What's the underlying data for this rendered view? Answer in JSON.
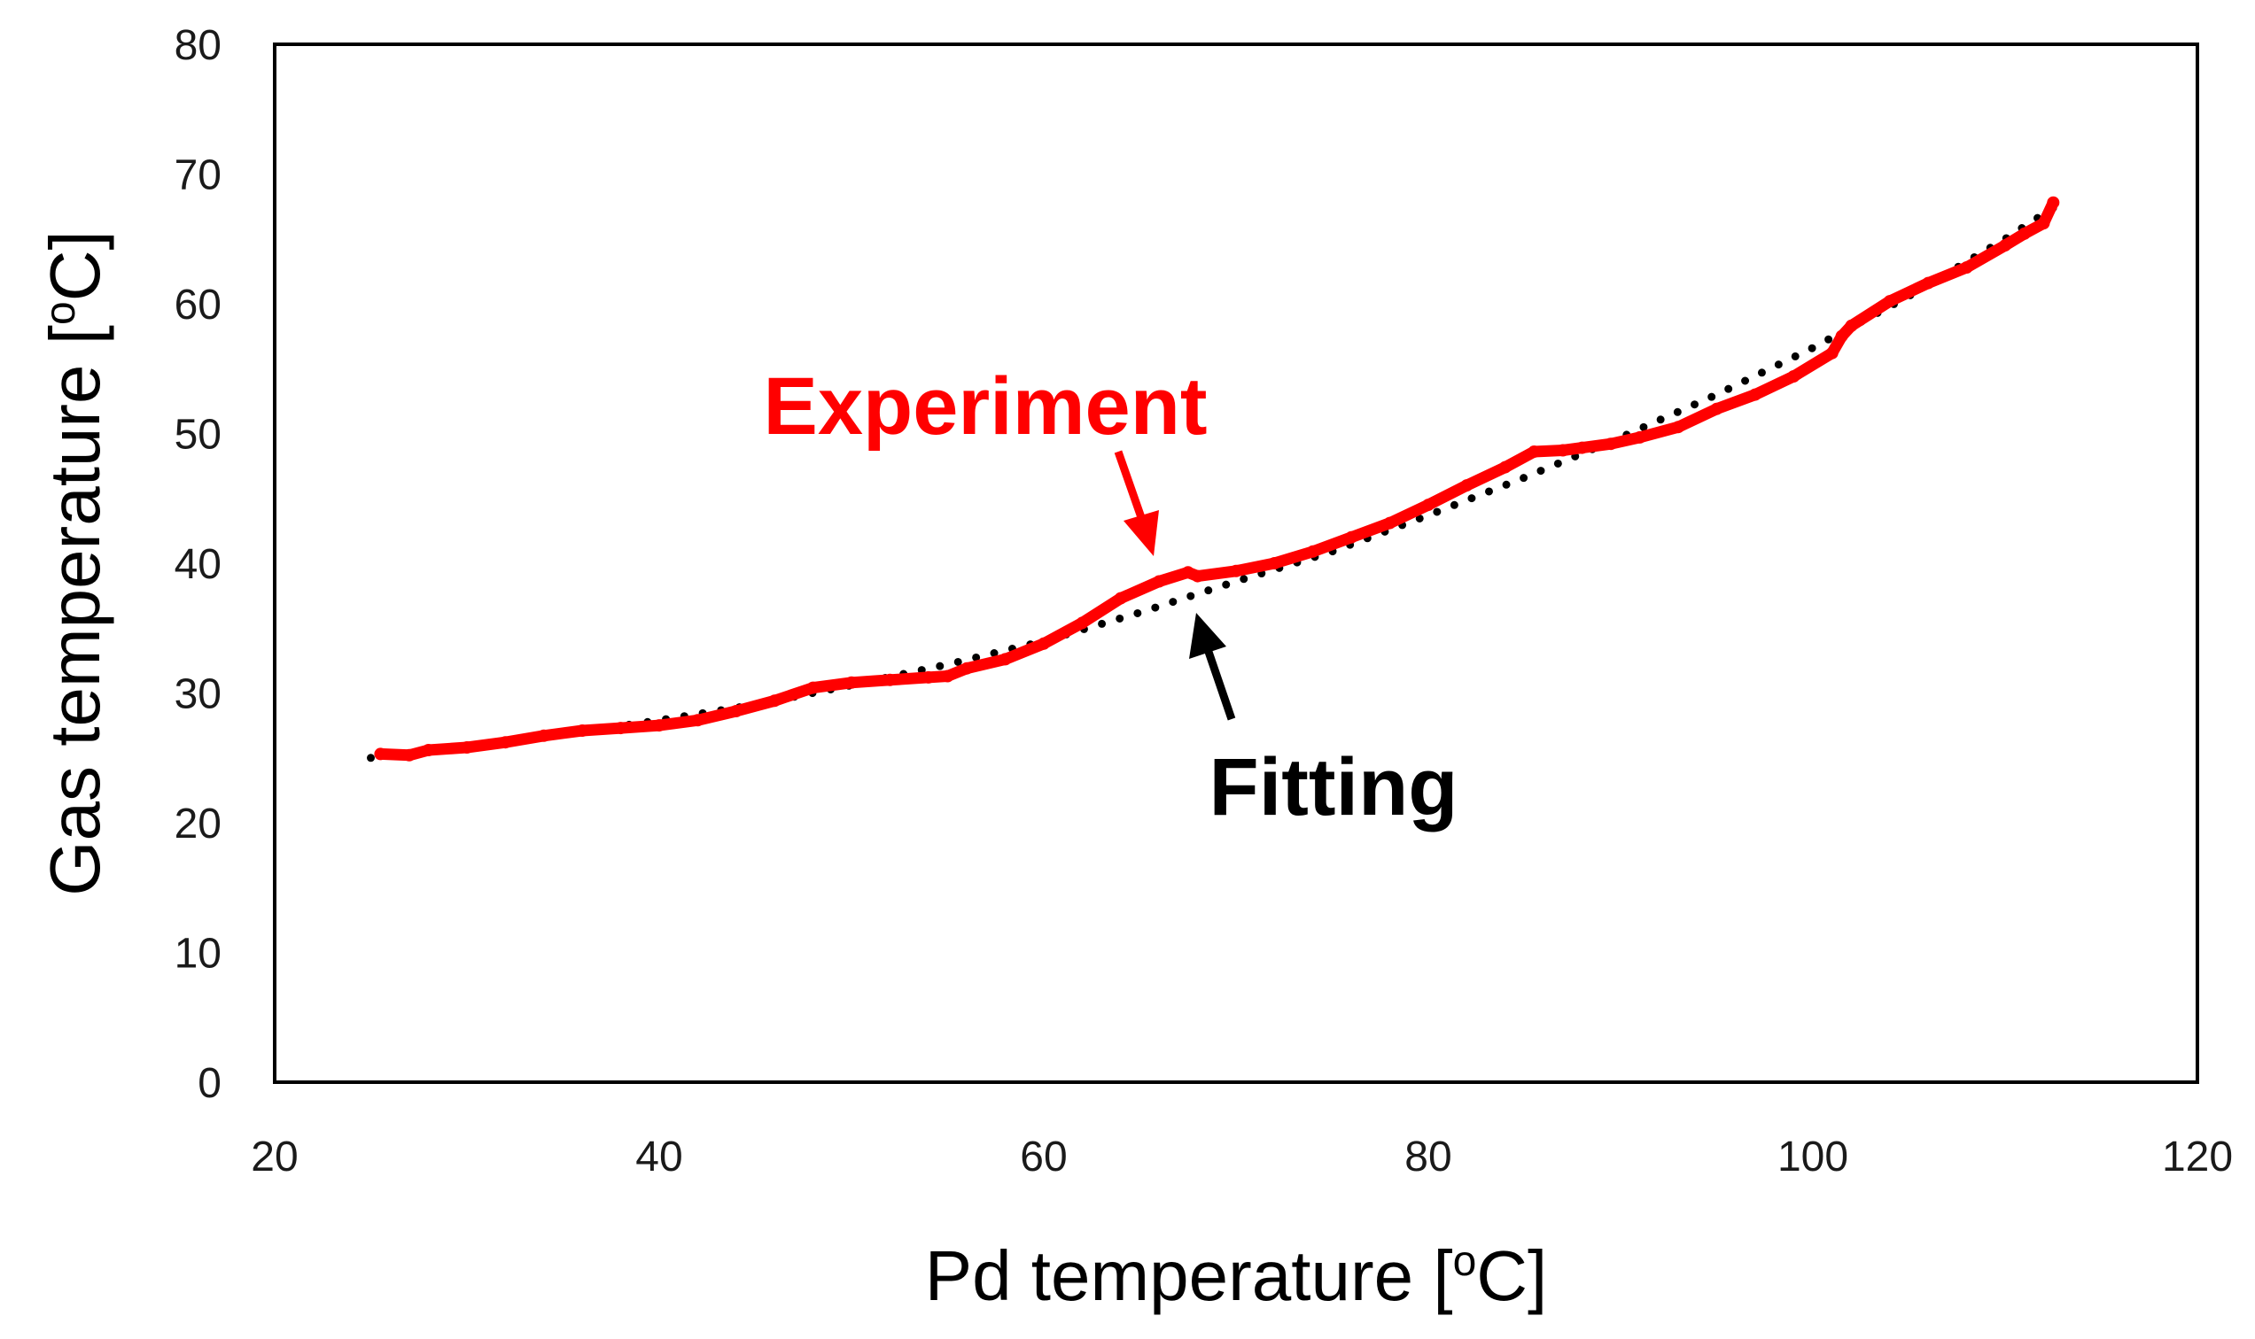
{
  "chart_data": {
    "type": "line",
    "title": "",
    "xlabel": {
      "main": "Pd temperature [",
      "sup": "o",
      "unit": "C]"
    },
    "ylabel": {
      "main": "Gas temperature [",
      "sup": "o",
      "unit": "C]"
    },
    "xlim": [
      20,
      120
    ],
    "ylim": [
      0,
      80
    ],
    "xticks": [
      20,
      40,
      60,
      80,
      100,
      120
    ],
    "yticks": [
      0,
      10,
      20,
      30,
      40,
      50,
      60,
      70,
      80
    ],
    "grid": false,
    "legend": "none",
    "colors": {
      "experiment": "#ff0000",
      "fitting": "#000000",
      "axis": "#000000"
    },
    "series": [
      {
        "name": "Experiment",
        "style": "solid-thick",
        "x": [
          25.5,
          27,
          28,
          30,
          32,
          34,
          36,
          38,
          40,
          42,
          44,
          46,
          48,
          50,
          52,
          54,
          55,
          56,
          58,
          60,
          62,
          64,
          66,
          67.5,
          68,
          70,
          72,
          74,
          76,
          78,
          80,
          82,
          84,
          85.5,
          87,
          88,
          89.5,
          91,
          93,
          95,
          97,
          99,
          101,
          101.5,
          102,
          104,
          106,
          108,
          110,
          111,
          112,
          112.5
        ],
        "y": [
          25.3,
          25.2,
          25.6,
          25.8,
          26.2,
          26.7,
          27.1,
          27.3,
          27.5,
          27.9,
          28.6,
          29.4,
          30.4,
          30.8,
          31.0,
          31.2,
          31.3,
          31.9,
          32.6,
          33.8,
          35.4,
          37.3,
          38.6,
          39.3,
          39.0,
          39.4,
          40.0,
          40.9,
          42.0,
          43.1,
          44.5,
          46.0,
          47.4,
          48.6,
          48.7,
          48.9,
          49.2,
          49.7,
          50.5,
          51.9,
          53.0,
          54.4,
          56.2,
          57.5,
          58.3,
          60.2,
          61.6,
          62.8,
          64.5,
          65.4,
          66.2,
          67.8
        ]
      },
      {
        "name": "Fitting",
        "style": "dotted",
        "x": [
          25,
          30,
          35,
          40,
          45,
          50,
          55,
          60,
          65,
          70,
          75,
          80,
          85,
          90,
          95,
          100,
          105,
          110,
          112.5
        ],
        "y": [
          25.0,
          25.8,
          26.8,
          27.9,
          29.1,
          30.6,
          32.2,
          34.0,
          36.2,
          38.6,
          40.9,
          43.7,
          46.6,
          49.7,
          53.0,
          56.6,
          60.6,
          65.0,
          67.4
        ]
      }
    ],
    "annotations": [
      {
        "text": "Experiment",
        "color": "#ff0000",
        "points_to": {
          "x": 66.6,
          "y": 39.0
        }
      },
      {
        "text": "Fitting",
        "color": "#000000",
        "points_to": {
          "x": 67.6,
          "y": 37.0
        }
      }
    ]
  }
}
